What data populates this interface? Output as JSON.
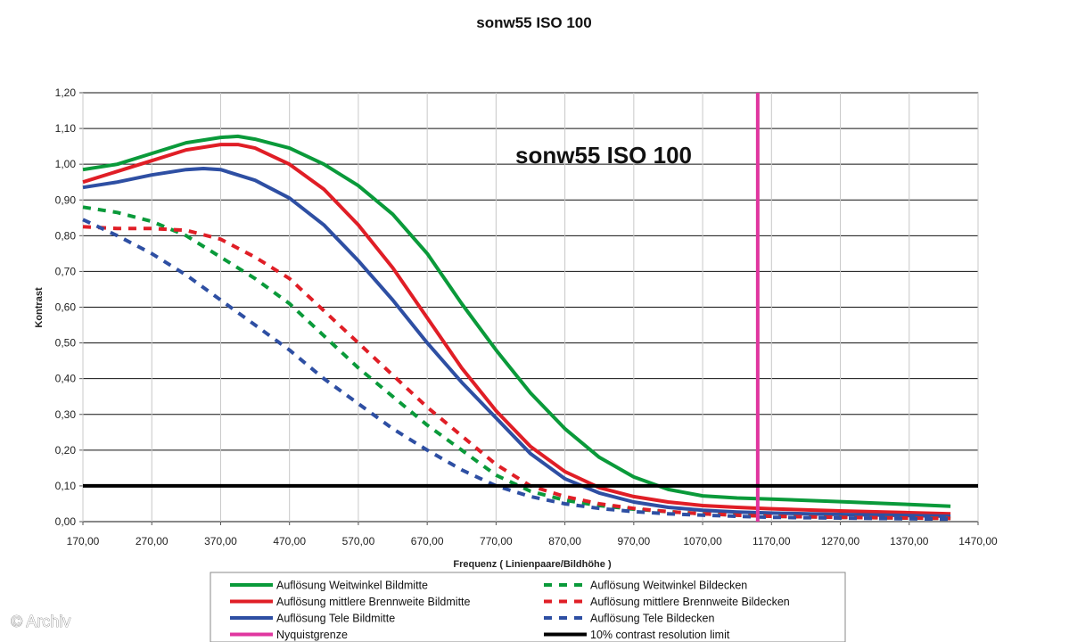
{
  "watermark": "© Archiv",
  "chart_data": {
    "type": "line",
    "title": "sonw55 ISO 100",
    "annotation": "sonw55 ISO 100",
    "xlabel": "Frequenz ( Linienpaare/Bildhöhe )",
    "ylabel": "Kontrast",
    "xlim": [
      170,
      1470
    ],
    "ylim": [
      0,
      1.2
    ],
    "x_ticks": [
      "170,00",
      "270,00",
      "370,00",
      "470,00",
      "570,00",
      "670,00",
      "770,00",
      "870,00",
      "970,00",
      "1070,00",
      "1170,00",
      "1270,00",
      "1370,00",
      "1470,00"
    ],
    "y_ticks": [
      "0,00",
      "0,10",
      "0,20",
      "0,30",
      "0,40",
      "0,50",
      "0,60",
      "0,70",
      "0,80",
      "0,90",
      "1,00",
      "1,10",
      "1,20"
    ],
    "grid": true,
    "legend_position": "bottom",
    "series": [
      {
        "name": "Auflösung Weitwinkel Bildmitte",
        "color": "#0a9a3a",
        "dash": false,
        "x": [
          170,
          220,
          270,
          320,
          370,
          395,
          420,
          470,
          520,
          570,
          620,
          670,
          720,
          770,
          820,
          870,
          920,
          970,
          1020,
          1070,
          1120,
          1170,
          1270,
          1370,
          1430
        ],
        "y": [
          0.985,
          1.0,
          1.03,
          1.06,
          1.075,
          1.078,
          1.07,
          1.045,
          1.0,
          0.94,
          0.86,
          0.75,
          0.61,
          0.48,
          0.36,
          0.26,
          0.18,
          0.125,
          0.09,
          0.072,
          0.066,
          0.063,
          0.056,
          0.048,
          0.043
        ]
      },
      {
        "name": "Auflösung mittlere Brennweite Bildmitte",
        "color": "#e01e26",
        "dash": false,
        "x": [
          170,
          220,
          270,
          320,
          370,
          395,
          420,
          470,
          520,
          570,
          620,
          670,
          720,
          770,
          820,
          870,
          920,
          970,
          1020,
          1070,
          1120,
          1170,
          1270,
          1370,
          1430
        ],
        "y": [
          0.95,
          0.98,
          1.01,
          1.04,
          1.055,
          1.055,
          1.045,
          1.0,
          0.93,
          0.83,
          0.71,
          0.57,
          0.43,
          0.31,
          0.21,
          0.14,
          0.095,
          0.07,
          0.055,
          0.045,
          0.04,
          0.036,
          0.03,
          0.025,
          0.022
        ]
      },
      {
        "name": "Auflösung Tele Bildmitte",
        "color": "#2e4fa3",
        "dash": false,
        "x": [
          170,
          220,
          270,
          320,
          345,
          370,
          420,
          470,
          520,
          570,
          620,
          670,
          720,
          770,
          820,
          870,
          920,
          970,
          1020,
          1070,
          1120,
          1170,
          1270,
          1370,
          1430
        ],
        "y": [
          0.935,
          0.95,
          0.97,
          0.985,
          0.988,
          0.985,
          0.955,
          0.905,
          0.83,
          0.73,
          0.62,
          0.5,
          0.39,
          0.29,
          0.19,
          0.12,
          0.08,
          0.055,
          0.04,
          0.032,
          0.027,
          0.024,
          0.02,
          0.017,
          0.015
        ]
      },
      {
        "name": "Auflösung Weitwinkel Bildecken",
        "color": "#0a9a3a",
        "dash": true,
        "x": [
          170,
          220,
          270,
          320,
          370,
          420,
          470,
          520,
          570,
          620,
          670,
          720,
          770,
          820,
          870,
          920,
          970,
          1020,
          1070,
          1120,
          1170,
          1270,
          1370,
          1430
        ],
        "y": [
          0.88,
          0.865,
          0.84,
          0.8,
          0.74,
          0.68,
          0.61,
          0.52,
          0.43,
          0.35,
          0.27,
          0.2,
          0.13,
          0.085,
          0.06,
          0.045,
          0.035,
          0.028,
          0.022,
          0.018,
          0.015,
          0.012,
          0.01,
          0.009
        ]
      },
      {
        "name": "Auflösung mittlere Brennweite Bildecken",
        "color": "#e01e26",
        "dash": true,
        "x": [
          170,
          220,
          270,
          320,
          370,
          420,
          470,
          520,
          570,
          620,
          670,
          720,
          770,
          820,
          870,
          920,
          970,
          1020,
          1070,
          1120,
          1170,
          1270,
          1370,
          1430
        ],
        "y": [
          0.825,
          0.82,
          0.82,
          0.815,
          0.79,
          0.74,
          0.68,
          0.59,
          0.5,
          0.41,
          0.32,
          0.24,
          0.16,
          0.1,
          0.07,
          0.05,
          0.037,
          0.028,
          0.022,
          0.018,
          0.015,
          0.012,
          0.01,
          0.009
        ]
      },
      {
        "name": "Auflösung Tele Bildecken",
        "color": "#2e4fa3",
        "dash": true,
        "x": [
          170,
          220,
          270,
          320,
          370,
          420,
          470,
          520,
          570,
          620,
          670,
          720,
          770,
          820,
          870,
          920,
          970,
          1020,
          1070,
          1120,
          1170,
          1270,
          1370,
          1430
        ],
        "y": [
          0.845,
          0.8,
          0.75,
          0.69,
          0.62,
          0.55,
          0.48,
          0.4,
          0.33,
          0.26,
          0.2,
          0.145,
          0.1,
          0.07,
          0.05,
          0.037,
          0.028,
          0.022,
          0.018,
          0.015,
          0.012,
          0.01,
          0.008,
          0.007
        ]
      },
      {
        "name": "Nyquistgrenze",
        "color": "#e0369f",
        "dash": false,
        "vertical_at_x": 1150
      },
      {
        "name": "10% contrast resolution limit",
        "color": "#000000",
        "dash": false,
        "horizontal_at_y": 0.1
      }
    ]
  }
}
